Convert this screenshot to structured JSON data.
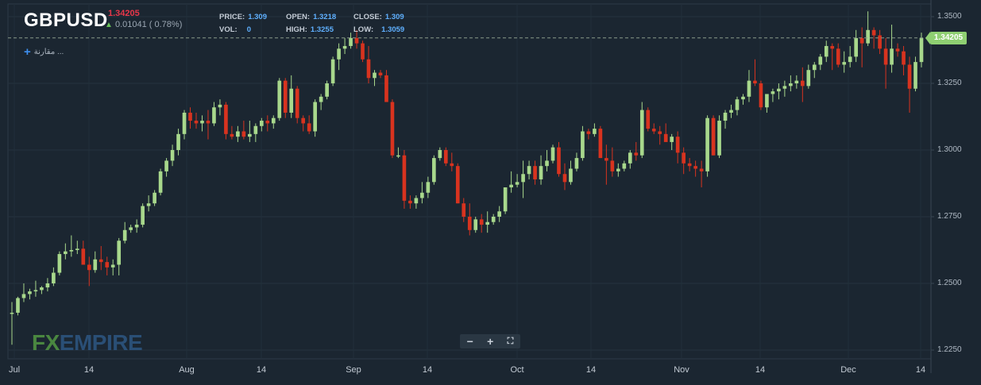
{
  "header": {
    "symbol": "GBPUSD",
    "current_price": "1.34205",
    "change": "0.01041 ( 0.78%)",
    "compare_label": "مقارنة ...",
    "stats": {
      "price_label": "PRICE:",
      "price": "1.309",
      "vol_label": "VOL:",
      "vol": "0",
      "open_label": "OPEN:",
      "open": "1.3218",
      "high_label": "HIGH:",
      "high": "1.3255",
      "close_label": "CLOSE:",
      "close": "1.309",
      "low_label": "LOW:",
      "low": "1.3059"
    }
  },
  "logo": {
    "fx": "FX",
    "empire": "EMPIRE"
  },
  "zoom_controls": {
    "minus": "−",
    "plus": "+",
    "fullscreen": "⛶"
  },
  "colors": {
    "up": "#a8d88c",
    "down": "#d8331f",
    "background": "#1b2631",
    "last_price": "#8fcf72"
  },
  "chart_data": {
    "type": "candlestick",
    "last_price": 1.34205,
    "ylim": [
      1.2225,
      1.3525
    ],
    "yticks": [
      "1.3500",
      "1.3250",
      "1.3000",
      "1.2750",
      "1.2500",
      "1.2250"
    ],
    "xticks": [
      "Jul",
      "14",
      "Aug",
      "14",
      "Sep",
      "14",
      "Oct",
      "14",
      "Nov",
      "14",
      "Dec",
      "14"
    ],
    "ohlc": [
      [
        1.239,
        1.243,
        1.227,
        1.239
      ],
      [
        1.239,
        1.245,
        1.238,
        1.2445
      ],
      [
        1.2445,
        1.25,
        1.243,
        1.246
      ],
      [
        1.246,
        1.248,
        1.244,
        1.247
      ],
      [
        1.247,
        1.251,
        1.245,
        1.2475
      ],
      [
        1.2475,
        1.249,
        1.246,
        1.2485
      ],
      [
        1.2485,
        1.252,
        1.247,
        1.25
      ],
      [
        1.25,
        1.256,
        1.249,
        1.254
      ],
      [
        1.254,
        1.262,
        1.253,
        1.261
      ],
      [
        1.261,
        1.265,
        1.259,
        1.262
      ],
      [
        1.262,
        1.268,
        1.26,
        1.2625
      ],
      [
        1.2625,
        1.266,
        1.261,
        1.263
      ],
      [
        1.263,
        1.266,
        1.258,
        1.257
      ],
      [
        1.257,
        1.26,
        1.249,
        1.255
      ],
      [
        1.255,
        1.262,
        1.254,
        1.259
      ],
      [
        1.259,
        1.264,
        1.255,
        1.258
      ],
      [
        1.258,
        1.26,
        1.253,
        1.256
      ],
      [
        1.256,
        1.259,
        1.253,
        1.257
      ],
      [
        1.257,
        1.267,
        1.253,
        1.266
      ],
      [
        1.266,
        1.273,
        1.265,
        1.27
      ],
      [
        1.27,
        1.272,
        1.269,
        1.271
      ],
      [
        1.271,
        1.274,
        1.269,
        1.272
      ],
      [
        1.272,
        1.28,
        1.271,
        1.279
      ],
      [
        1.279,
        1.283,
        1.277,
        1.28
      ],
      [
        1.28,
        1.285,
        1.279,
        1.284
      ],
      [
        1.284,
        1.293,
        1.283,
        1.292
      ],
      [
        1.292,
        1.297,
        1.29,
        1.296
      ],
      [
        1.296,
        1.302,
        1.294,
        1.3
      ],
      [
        1.3,
        1.308,
        1.298,
        1.306
      ],
      [
        1.306,
        1.315,
        1.304,
        1.314
      ],
      [
        1.314,
        1.316,
        1.308,
        1.311
      ],
      [
        1.311,
        1.314,
        1.308,
        1.31
      ],
      [
        1.31,
        1.313,
        1.307,
        1.311
      ],
      [
        1.311,
        1.315,
        1.304,
        1.31
      ],
      [
        1.31,
        1.318,
        1.309,
        1.316
      ],
      [
        1.316,
        1.319,
        1.313,
        1.317
      ],
      [
        1.317,
        1.318,
        1.304,
        1.306
      ],
      [
        1.306,
        1.309,
        1.304,
        1.305
      ],
      [
        1.305,
        1.309,
        1.303,
        1.307
      ],
      [
        1.307,
        1.311,
        1.304,
        1.305
      ],
      [
        1.305,
        1.311,
        1.303,
        1.306
      ],
      [
        1.306,
        1.31,
        1.303,
        1.309
      ],
      [
        1.309,
        1.312,
        1.307,
        1.311
      ],
      [
        1.311,
        1.313,
        1.307,
        1.31
      ],
      [
        1.31,
        1.313,
        1.308,
        1.312
      ],
      [
        1.312,
        1.327,
        1.311,
        1.326
      ],
      [
        1.326,
        1.327,
        1.312,
        1.314
      ],
      [
        1.314,
        1.328,
        1.312,
        1.323
      ],
      [
        1.323,
        1.324,
        1.31,
        1.312
      ],
      [
        1.312,
        1.313,
        1.307,
        1.31
      ],
      [
        1.31,
        1.313,
        1.306,
        1.307
      ],
      [
        1.307,
        1.319,
        1.305,
        1.318
      ],
      [
        1.318,
        1.321,
        1.315,
        1.32
      ],
      [
        1.32,
        1.326,
        1.319,
        1.325
      ],
      [
        1.325,
        1.335,
        1.324,
        1.334
      ],
      [
        1.334,
        1.34,
        1.33,
        1.338
      ],
      [
        1.338,
        1.342,
        1.336,
        1.339
      ],
      [
        1.339,
        1.344,
        1.338,
        1.342
      ],
      [
        1.342,
        1.345,
        1.338,
        1.34
      ],
      [
        1.34,
        1.341,
        1.333,
        1.334
      ],
      [
        1.334,
        1.339,
        1.325,
        1.327
      ],
      [
        1.327,
        1.33,
        1.324,
        1.329
      ],
      [
        1.329,
        1.33,
        1.327,
        1.328
      ],
      [
        1.328,
        1.33,
        1.319,
        1.318
      ],
      [
        1.318,
        1.319,
        1.297,
        1.298
      ],
      [
        1.298,
        1.301,
        1.297,
        1.298
      ],
      [
        1.298,
        1.3,
        1.278,
        1.281
      ],
      [
        1.281,
        1.283,
        1.278,
        1.28
      ],
      [
        1.28,
        1.283,
        1.278,
        1.282
      ],
      [
        1.282,
        1.288,
        1.28,
        1.284
      ],
      [
        1.284,
        1.29,
        1.282,
        1.288
      ],
      [
        1.288,
        1.298,
        1.287,
        1.297
      ],
      [
        1.297,
        1.301,
        1.296,
        1.3
      ],
      [
        1.3,
        1.301,
        1.294,
        1.295
      ],
      [
        1.295,
        1.299,
        1.292,
        1.294
      ],
      [
        1.294,
        1.295,
        1.28,
        1.28
      ],
      [
        1.28,
        1.282,
        1.273,
        1.275
      ],
      [
        1.275,
        1.28,
        1.268,
        1.27
      ],
      [
        1.27,
        1.275,
        1.269,
        1.274
      ],
      [
        1.274,
        1.276,
        1.269,
        1.272
      ],
      [
        1.272,
        1.277,
        1.269,
        1.273
      ],
      [
        1.273,
        1.276,
        1.272,
        1.275
      ],
      [
        1.275,
        1.279,
        1.273,
        1.277
      ],
      [
        1.277,
        1.286,
        1.276,
        1.286
      ],
      [
        1.286,
        1.292,
        1.284,
        1.287
      ],
      [
        1.287,
        1.291,
        1.286,
        1.288
      ],
      [
        1.288,
        1.296,
        1.282,
        1.291
      ],
      [
        1.291,
        1.296,
        1.289,
        1.294
      ],
      [
        1.294,
        1.296,
        1.287,
        1.289
      ],
      [
        1.289,
        1.298,
        1.287,
        1.294
      ],
      [
        1.294,
        1.3,
        1.292,
        1.296
      ],
      [
        1.296,
        1.302,
        1.295,
        1.301
      ],
      [
        1.301,
        1.303,
        1.29,
        1.291
      ],
      [
        1.291,
        1.295,
        1.285,
        1.288
      ],
      [
        1.288,
        1.296,
        1.287,
        1.293
      ],
      [
        1.293,
        1.299,
        1.292,
        1.297
      ],
      [
        1.297,
        1.309,
        1.296,
        1.307
      ],
      [
        1.307,
        1.308,
        1.304,
        1.306
      ],
      [
        1.306,
        1.31,
        1.305,
        1.308
      ],
      [
        1.308,
        1.309,
        1.297,
        1.297
      ],
      [
        1.297,
        1.302,
        1.287,
        1.296
      ],
      [
        1.296,
        1.301,
        1.29,
        1.292
      ],
      [
        1.292,
        1.295,
        1.29,
        1.293
      ],
      [
        1.293,
        1.296,
        1.292,
        1.295
      ],
      [
        1.295,
        1.3,
        1.293,
        1.299
      ],
      [
        1.299,
        1.303,
        1.296,
        1.298
      ],
      [
        1.298,
        1.318,
        1.297,
        1.315
      ],
      [
        1.315,
        1.316,
        1.307,
        1.308
      ],
      [
        1.308,
        1.31,
        1.306,
        1.307
      ],
      [
        1.307,
        1.309,
        1.302,
        1.306
      ],
      [
        1.306,
        1.31,
        1.304,
        1.303
      ],
      [
        1.303,
        1.306,
        1.3,
        1.305
      ],
      [
        1.305,
        1.307,
        1.295,
        1.299
      ],
      [
        1.299,
        1.301,
        1.291,
        1.295
      ],
      [
        1.295,
        1.297,
        1.292,
        1.294
      ],
      [
        1.294,
        1.296,
        1.29,
        1.293
      ],
      [
        1.293,
        1.296,
        1.286,
        1.292
      ],
      [
        1.292,
        1.313,
        1.29,
        1.312
      ],
      [
        1.312,
        1.313,
        1.298,
        1.298
      ],
      [
        1.298,
        1.313,
        1.297,
        1.311
      ],
      [
        1.311,
        1.315,
        1.308,
        1.314
      ],
      [
        1.314,
        1.317,
        1.312,
        1.315
      ],
      [
        1.315,
        1.32,
        1.313,
        1.319
      ],
      [
        1.319,
        1.321,
        1.317,
        1.32
      ],
      [
        1.32,
        1.33,
        1.318,
        1.326
      ],
      [
        1.326,
        1.334,
        1.324,
        1.325
      ],
      [
        1.325,
        1.326,
        1.315,
        1.316
      ],
      [
        1.316,
        1.32,
        1.314,
        1.321
      ],
      [
        1.321,
        1.323,
        1.318,
        1.322
      ],
      [
        1.322,
        1.325,
        1.319,
        1.323
      ],
      [
        1.323,
        1.326,
        1.32,
        1.324
      ],
      [
        1.324,
        1.328,
        1.322,
        1.325
      ],
      [
        1.325,
        1.328,
        1.323,
        1.326
      ],
      [
        1.326,
        1.331,
        1.318,
        1.324
      ],
      [
        1.324,
        1.332,
        1.323,
        1.33
      ],
      [
        1.33,
        1.333,
        1.327,
        1.332
      ],
      [
        1.332,
        1.336,
        1.33,
        1.335
      ],
      [
        1.335,
        1.341,
        1.333,
        1.339
      ],
      [
        1.339,
        1.34,
        1.33,
        1.338
      ],
      [
        1.338,
        1.34,
        1.331,
        1.332
      ],
      [
        1.332,
        1.337,
        1.329,
        1.333
      ],
      [
        1.333,
        1.339,
        1.331,
        1.335
      ],
      [
        1.335,
        1.345,
        1.333,
        1.342
      ],
      [
        1.342,
        1.346,
        1.331,
        1.34
      ],
      [
        1.34,
        1.352,
        1.339,
        1.345
      ],
      [
        1.345,
        1.346,
        1.338,
        1.343
      ],
      [
        1.343,
        1.345,
        1.336,
        1.338
      ],
      [
        1.338,
        1.342,
        1.323,
        1.332
      ],
      [
        1.332,
        1.347,
        1.329,
        1.338
      ],
      [
        1.338,
        1.34,
        1.335,
        1.337
      ],
      [
        1.337,
        1.339,
        1.328,
        1.332
      ],
      [
        1.332,
        1.335,
        1.314,
        1.323
      ],
      [
        1.323,
        1.335,
        1.322,
        1.333
      ],
      [
        1.333,
        1.344,
        1.331,
        1.342
      ]
    ]
  }
}
